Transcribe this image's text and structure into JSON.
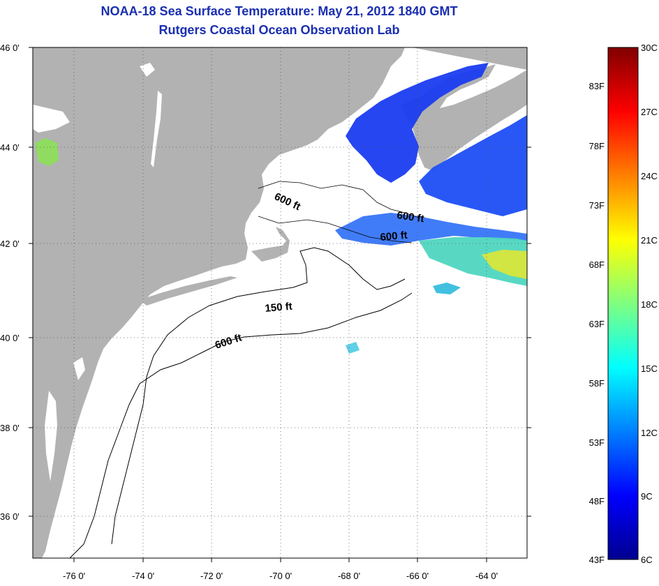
{
  "title": {
    "line1": "NOAA-18 Sea Surface Temperature:  May 21, 2012 1840 GMT",
    "line2": "Rutgers Coastal Ocean Observation Lab"
  },
  "map": {
    "lat_range": [
      35,
      46.5
    ],
    "lon_range": [
      -77,
      -63
    ],
    "lat_labels": [
      "46 0'",
      "44 0'",
      "42 0'",
      "40 0'",
      "38 0'",
      "36 0'"
    ],
    "lon_labels": [
      "-76 0'",
      "-74 0'",
      "-72 0'",
      "-70 0'",
      "-68 0'",
      "-66 0'",
      "-64 0'"
    ],
    "land_color": "#b2b2b2",
    "ocean_color": "#ffffff",
    "grid": "dotted",
    "contours": {
      "label_150": "150 ft",
      "label_600_a": "600 ft",
      "label_600_b": "600 ft",
      "label_600_c": "600 ft",
      "label_600_d": "600 ft"
    }
  },
  "colorbar": {
    "fahrenheit_labels": [
      "83F",
      "78F",
      "73F",
      "68F",
      "63F",
      "58F",
      "53F",
      "48F",
      "43F"
    ],
    "celsius_labels": [
      "30C",
      "27C",
      "24C",
      "21C",
      "18C",
      "15C",
      "12C",
      "9C",
      "6C"
    ],
    "range_c": [
      6,
      30
    ],
    "colormap": "jet"
  }
}
